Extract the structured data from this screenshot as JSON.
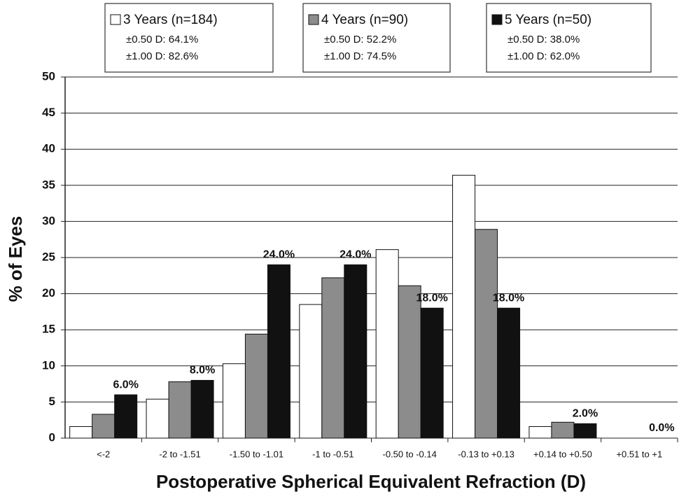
{
  "chart_data": {
    "type": "bar",
    "x_label": "Postoperative Spherical Equivalent Refraction (D)",
    "y_label": "% of Eyes",
    "categories": [
      "<-2",
      "-2 to -1.51",
      "-1.50 to -1.01",
      "-1 to -0.51",
      "-0.50 to -0.14",
      "-0.13 to +0.13",
      "+0.14 to +0.50",
      "+0.51 to +1"
    ],
    "series": [
      {
        "name": "3 Years (n=184)",
        "color": "#ffffff",
        "legend_notes": [
          "±0.50  D: 64.1%",
          "±1.00  D: 82.6%"
        ],
        "values": [
          1.6,
          5.4,
          10.3,
          18.5,
          26.1,
          36.4,
          1.6,
          0
        ]
      },
      {
        "name": "4 Years (n=90)",
        "color": "#8c8c8c",
        "legend_notes": [
          "±0.50  D: 52.2%",
          "±1.00  D: 74.5%"
        ],
        "values": [
          3.3,
          7.8,
          14.4,
          22.2,
          21.1,
          28.9,
          2.2,
          0
        ]
      },
      {
        "name": "5 Years (n=50)",
        "color": "#111111",
        "legend_notes": [
          "±0.50  D: 38.0%",
          "±1.00  D: 62.0%"
        ],
        "values": [
          6,
          8,
          24,
          24,
          18,
          18,
          2,
          0
        ],
        "value_labels": [
          "6.0%",
          "8.0%",
          "24.0%",
          "24.0%",
          "18.0%",
          "18.0%",
          "2.0%",
          "0.0%"
        ]
      }
    ],
    "ylim": [
      0,
      50
    ],
    "yticks": [
      0,
      5,
      10,
      15,
      20,
      25,
      30,
      35,
      40,
      45,
      50
    ],
    "grid": true
  }
}
